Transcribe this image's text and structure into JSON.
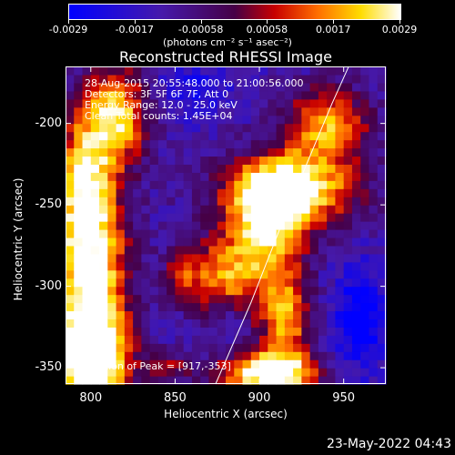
{
  "colorbar": {
    "ticks": [
      "-0.0029",
      "-0.0017",
      "-0.00058",
      "0.00058",
      "0.0017",
      "0.0029"
    ],
    "units": "(photons cm⁻² s⁻¹ asec⁻²)"
  },
  "chart_data": {
    "type": "heatmap",
    "title": "Reconstructed RHESSI Image",
    "xlabel": "Heliocentric X (arcsec)",
    "ylabel": "Heliocentric Y (arcsec)",
    "xlim": [
      785,
      975
    ],
    "ylim": [
      -360,
      -165
    ],
    "x_ticks": [
      800,
      850,
      900,
      950
    ],
    "y_ticks": [
      -200,
      -250,
      -300,
      -350
    ],
    "color_range": [
      -0.0029,
      0.0029
    ],
    "colormap": "blue-purple-red-orange-yellow-white",
    "peak": [
      917,
      -353
    ],
    "limb_curve": [
      [
        874,
        -360
      ],
      [
        895,
        -310
      ],
      [
        912,
        -265
      ],
      [
        928,
        -225
      ],
      [
        943,
        -188
      ],
      [
        953,
        -165
      ]
    ],
    "annotations": {
      "time": "28-Aug-2015 20:55:48.000 to 21:00:56.000",
      "detectors": "Detectors: 3F 5F 6F 7F, Att 0",
      "energy": "Energy Range: 12.0 - 25.0 keV",
      "clean": "Clean     Total counts: 1.45E+04",
      "peak_label": "Position of Peak = [917,-353]"
    }
  },
  "footer": {
    "date": "23-May-2022 04:43"
  }
}
